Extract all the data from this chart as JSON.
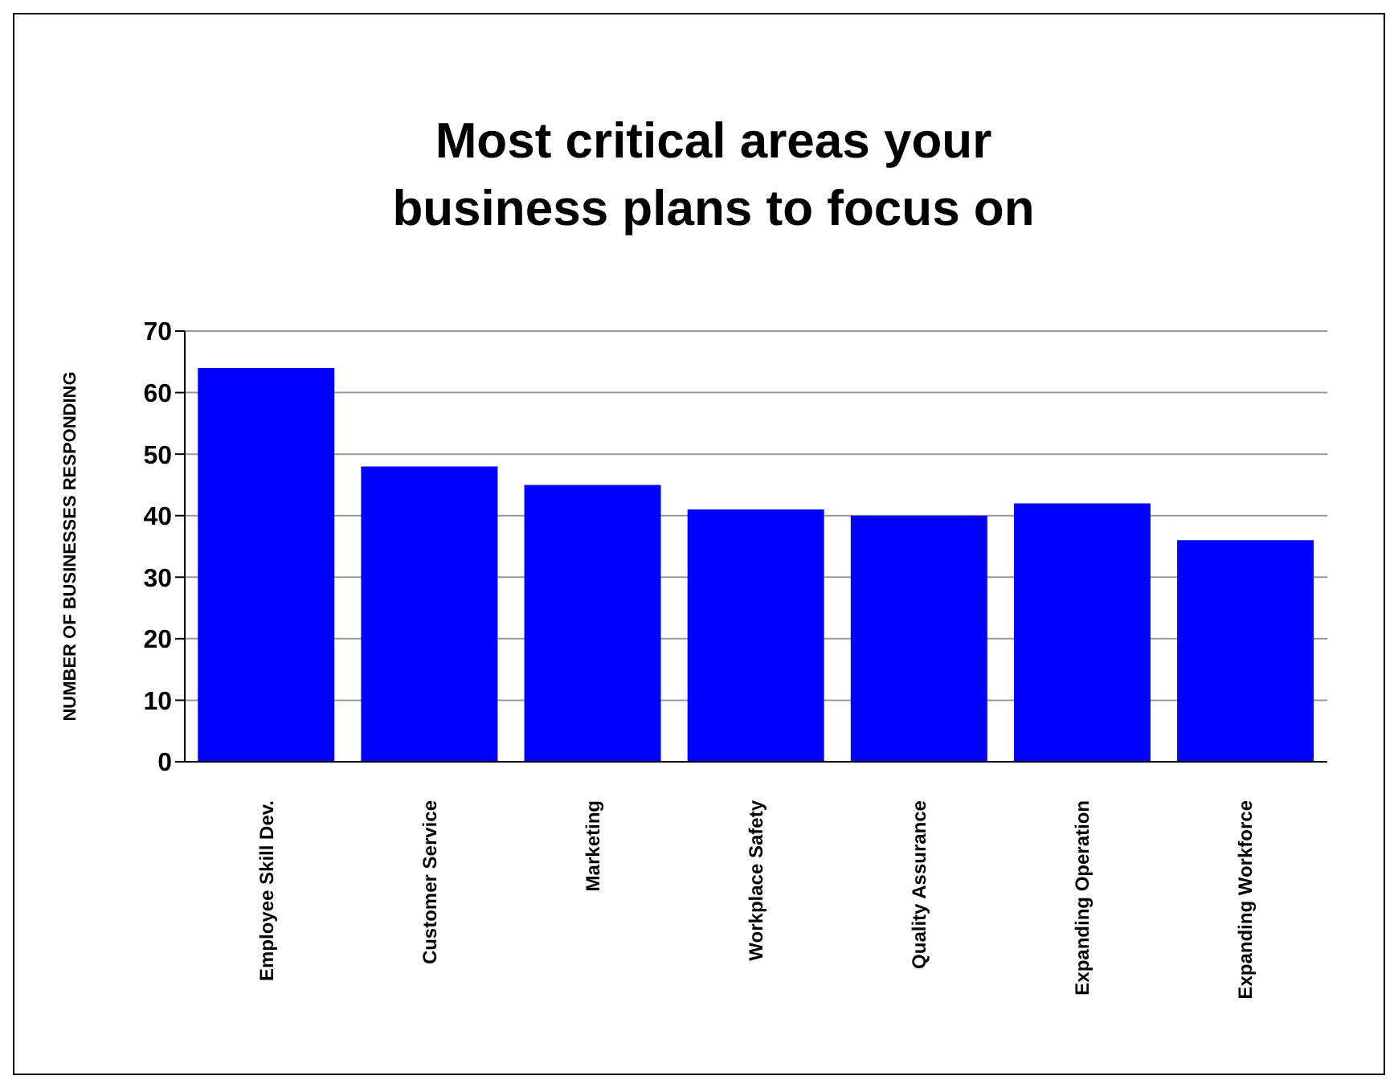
{
  "chart_data": {
    "type": "bar",
    "title": "Most critical areas your\nbusiness plans to focus on",
    "ylabel": "NUMBER OF BUSINESSES RESPONDING",
    "categories": [
      "Employee Skill Dev.",
      "Customer Service",
      "Marketing",
      "Workplace Safety",
      "Quality Assurance",
      "Expanding Operation",
      "Expanding Workforce"
    ],
    "values": [
      64,
      48,
      45,
      41,
      40,
      42,
      36
    ],
    "color": "#0000ff",
    "ylim": [
      0,
      70
    ],
    "yticks": [
      0,
      10,
      20,
      30,
      40,
      50,
      60,
      70
    ],
    "grid": "y"
  }
}
